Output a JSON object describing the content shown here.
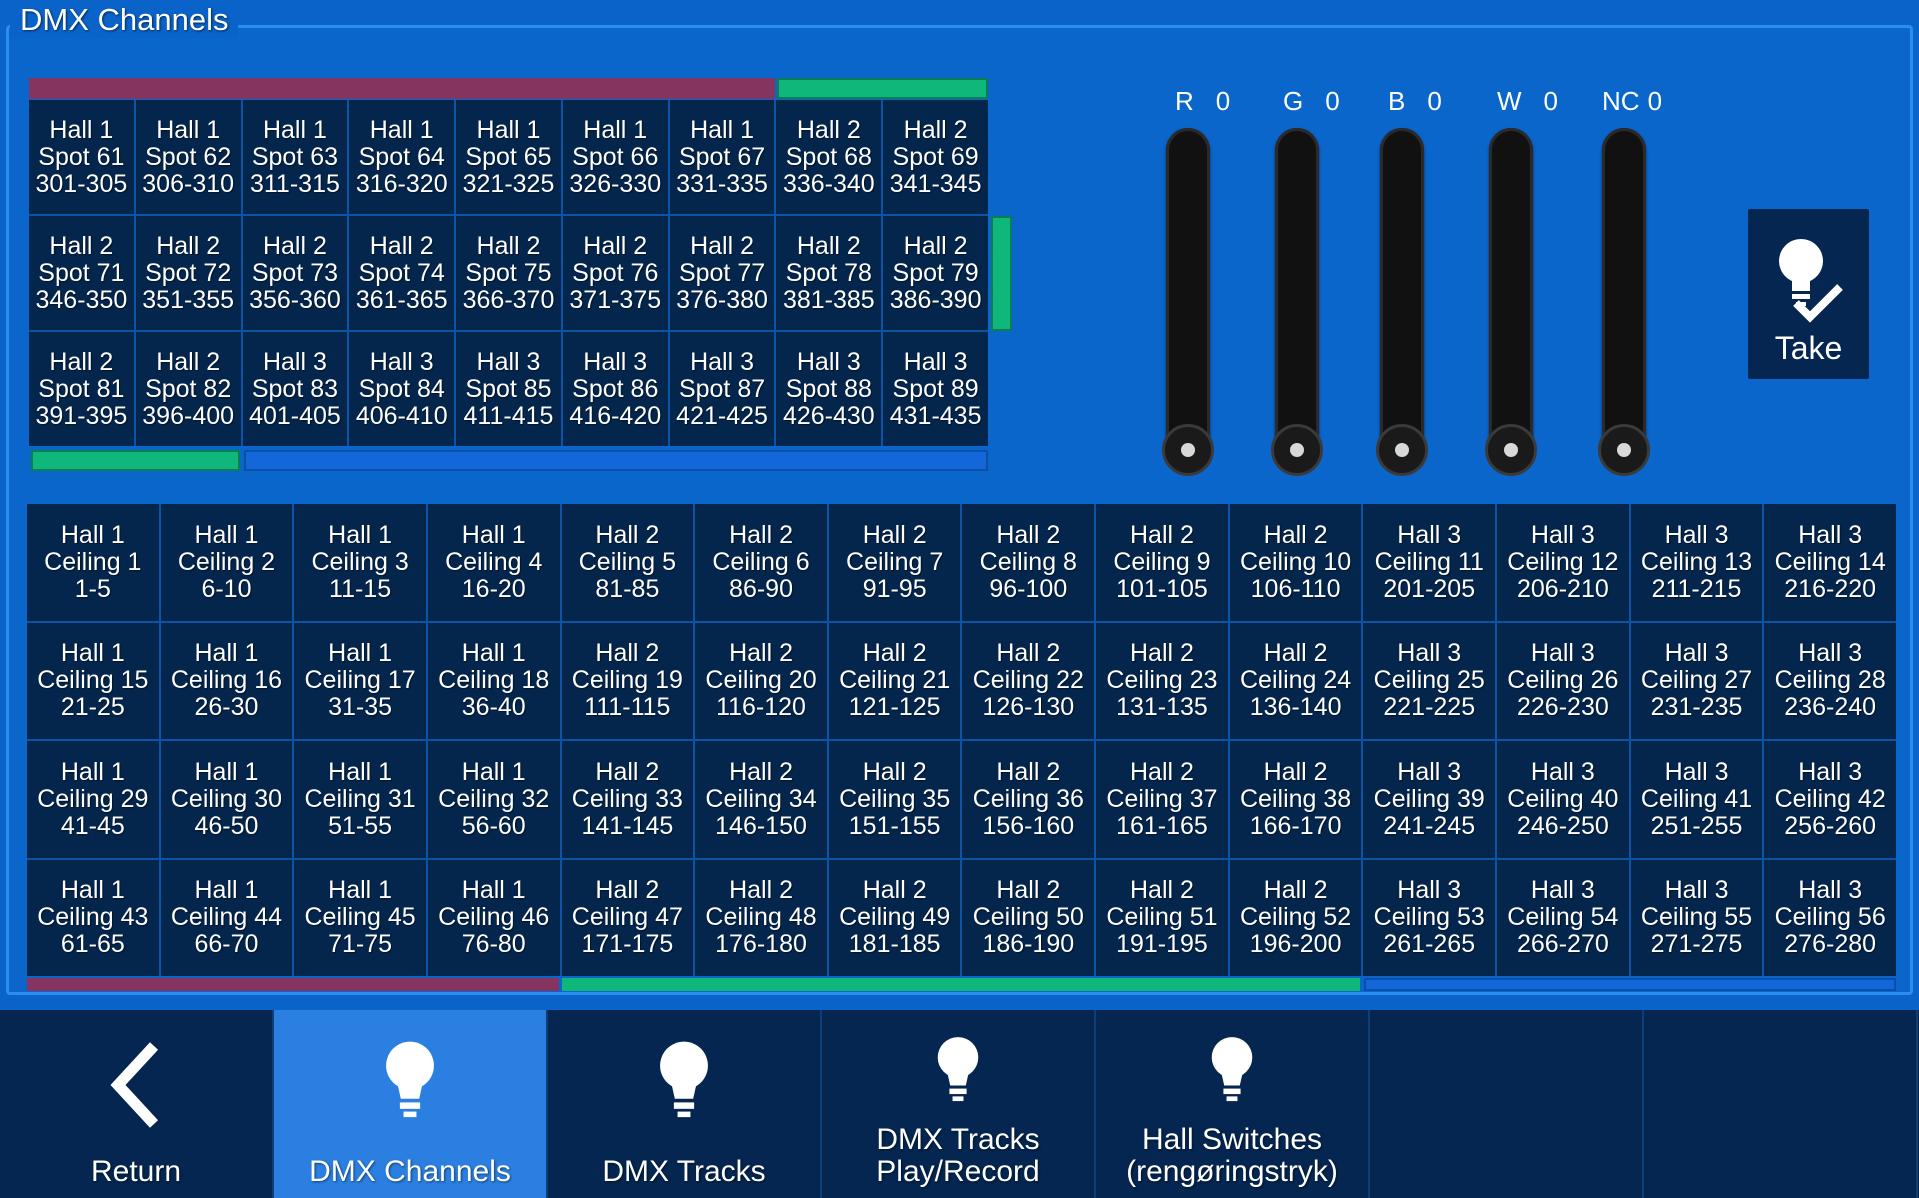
{
  "panel": {
    "title": "DMX Channels"
  },
  "spots": [
    [
      "Hall 1",
      "Spot 61",
      "301-305"
    ],
    [
      "Hall 1",
      "Spot 62",
      "306-310"
    ],
    [
      "Hall 1",
      "Spot 63",
      "311-315"
    ],
    [
      "Hall 1",
      "Spot 64",
      "316-320"
    ],
    [
      "Hall 1",
      "Spot 65",
      "321-325"
    ],
    [
      "Hall 1",
      "Spot 66",
      "326-330"
    ],
    [
      "Hall 1",
      "Spot 67",
      "331-335"
    ],
    [
      "Hall 2",
      "Spot 68",
      "336-340"
    ],
    [
      "Hall 2",
      "Spot 69",
      "341-345"
    ],
    [
      "Hall 2",
      "Spot 71",
      "346-350"
    ],
    [
      "Hall 2",
      "Spot 72",
      "351-355"
    ],
    [
      "Hall 2",
      "Spot 73",
      "356-360"
    ],
    [
      "Hall 2",
      "Spot 74",
      "361-365"
    ],
    [
      "Hall 2",
      "Spot 75",
      "366-370"
    ],
    [
      "Hall 2",
      "Spot 76",
      "371-375"
    ],
    [
      "Hall 2",
      "Spot 77",
      "376-380"
    ],
    [
      "Hall 2",
      "Spot 78",
      "381-385"
    ],
    [
      "Hall 2",
      "Spot 79",
      "386-390"
    ],
    [
      "Hall 2",
      "Spot 81",
      "391-395"
    ],
    [
      "Hall 2",
      "Spot 82",
      "396-400"
    ],
    [
      "Hall 3",
      "Spot 83",
      "401-405"
    ],
    [
      "Hall 3",
      "Spot 84",
      "406-410"
    ],
    [
      "Hall 3",
      "Spot 85",
      "411-415"
    ],
    [
      "Hall 3",
      "Spot 86",
      "416-420"
    ],
    [
      "Hall 3",
      "Spot 87",
      "421-425"
    ],
    [
      "Hall 3",
      "Spot 88",
      "426-430"
    ],
    [
      "Hall 3",
      "Spot 89",
      "431-435"
    ]
  ],
  "ceilings": [
    [
      "Hall 1",
      "Ceiling 1",
      "1-5"
    ],
    [
      "Hall 1",
      "Ceiling 2",
      "6-10"
    ],
    [
      "Hall 1",
      "Ceiling 3",
      "11-15"
    ],
    [
      "Hall 1",
      "Ceiling 4",
      "16-20"
    ],
    [
      "Hall 2",
      "Ceiling 5",
      "81-85"
    ],
    [
      "Hall 2",
      "Ceiling 6",
      "86-90"
    ],
    [
      "Hall 2",
      "Ceiling 7",
      "91-95"
    ],
    [
      "Hall 2",
      "Ceiling 8",
      "96-100"
    ],
    [
      "Hall 2",
      "Ceiling 9",
      "101-105"
    ],
    [
      "Hall 2",
      "Ceiling 10",
      "106-110"
    ],
    [
      "Hall 3",
      "Ceiling 11",
      "201-205"
    ],
    [
      "Hall 3",
      "Ceiling 12",
      "206-210"
    ],
    [
      "Hall 3",
      "Ceiling 13",
      "211-215"
    ],
    [
      "Hall 3",
      "Ceiling 14",
      "216-220"
    ],
    [
      "Hall 1",
      "Ceiling 15",
      "21-25"
    ],
    [
      "Hall 1",
      "Ceiling 16",
      "26-30"
    ],
    [
      "Hall 1",
      "Ceiling 17",
      "31-35"
    ],
    [
      "Hall 1",
      "Ceiling 18",
      "36-40"
    ],
    [
      "Hall 2",
      "Ceiling 19",
      "111-115"
    ],
    [
      "Hall 2",
      "Ceiling 20",
      "116-120"
    ],
    [
      "Hall 2",
      "Ceiling 21",
      "121-125"
    ],
    [
      "Hall 2",
      "Ceiling 22",
      "126-130"
    ],
    [
      "Hall 2",
      "Ceiling 23",
      "131-135"
    ],
    [
      "Hall 2",
      "Ceiling 24",
      "136-140"
    ],
    [
      "Hall 3",
      "Ceiling 25",
      "221-225"
    ],
    [
      "Hall 3",
      "Ceiling 26",
      "226-230"
    ],
    [
      "Hall 3",
      "Ceiling 27",
      "231-235"
    ],
    [
      "Hall 3",
      "Ceiling 28",
      "236-240"
    ],
    [
      "Hall 1",
      "Ceiling 29",
      "41-45"
    ],
    [
      "Hall 1",
      "Ceiling 30",
      "46-50"
    ],
    [
      "Hall 1",
      "Ceiling 31",
      "51-55"
    ],
    [
      "Hall 1",
      "Ceiling 32",
      "56-60"
    ],
    [
      "Hall 2",
      "Ceiling 33",
      "141-145"
    ],
    [
      "Hall 2",
      "Ceiling 34",
      "146-150"
    ],
    [
      "Hall 2",
      "Ceiling 35",
      "151-155"
    ],
    [
      "Hall 2",
      "Ceiling 36",
      "156-160"
    ],
    [
      "Hall 2",
      "Ceiling 37",
      "161-165"
    ],
    [
      "Hall 2",
      "Ceiling 38",
      "166-170"
    ],
    [
      "Hall 3",
      "Ceiling 39",
      "241-245"
    ],
    [
      "Hall 3",
      "Ceiling 40",
      "246-250"
    ],
    [
      "Hall 3",
      "Ceiling 41",
      "251-255"
    ],
    [
      "Hall 3",
      "Ceiling 42",
      "256-260"
    ],
    [
      "Hall 1",
      "Ceiling 43",
      "61-65"
    ],
    [
      "Hall 1",
      "Ceiling 44",
      "66-70"
    ],
    [
      "Hall 1",
      "Ceiling 45",
      "71-75"
    ],
    [
      "Hall 1",
      "Ceiling 46",
      "76-80"
    ],
    [
      "Hall 2",
      "Ceiling 47",
      "171-175"
    ],
    [
      "Hall 2",
      "Ceiling 48",
      "176-180"
    ],
    [
      "Hall 2",
      "Ceiling 49",
      "181-185"
    ],
    [
      "Hall 2",
      "Ceiling 50",
      "186-190"
    ],
    [
      "Hall 2",
      "Ceiling 51",
      "191-195"
    ],
    [
      "Hall 2",
      "Ceiling 52",
      "196-200"
    ],
    [
      "Hall 3",
      "Ceiling 53",
      "261-265"
    ],
    [
      "Hall 3",
      "Ceiling 54",
      "266-270"
    ],
    [
      "Hall 3",
      "Ceiling 55",
      "271-275"
    ],
    [
      "Hall 3",
      "Ceiling 56",
      "276-280"
    ]
  ],
  "hall_colors": {
    "hall1": "#84345f",
    "hall2": "#10b77a",
    "hall3": "#1467d9"
  },
  "sliders": [
    {
      "name": "R",
      "value": "0",
      "level": 0
    },
    {
      "name": "G",
      "value": "0",
      "level": 0
    },
    {
      "name": "B",
      "value": "0",
      "level": 0
    },
    {
      "name": "W",
      "value": "0",
      "level": 0
    },
    {
      "name": "NC",
      "value": "0",
      "level": 0
    }
  ],
  "take": {
    "label": "Take"
  },
  "nav": [
    {
      "label": "Return",
      "icon": "chevron-left-icon",
      "active": false
    },
    {
      "label": "DMX Channels",
      "icon": "lightbulb-icon",
      "active": true
    },
    {
      "label": "DMX Tracks",
      "icon": "lightbulb-icon",
      "active": false
    },
    {
      "label": "DMX Tracks\nPlay/Record",
      "icon": "lightbulb-icon",
      "active": false
    },
    {
      "label": "Hall Switches\n(rengøringstryk)",
      "icon": "lightbulb-icon",
      "active": false
    },
    {
      "label": "",
      "icon": "",
      "active": false
    },
    {
      "label": "",
      "icon": "",
      "active": false
    }
  ]
}
